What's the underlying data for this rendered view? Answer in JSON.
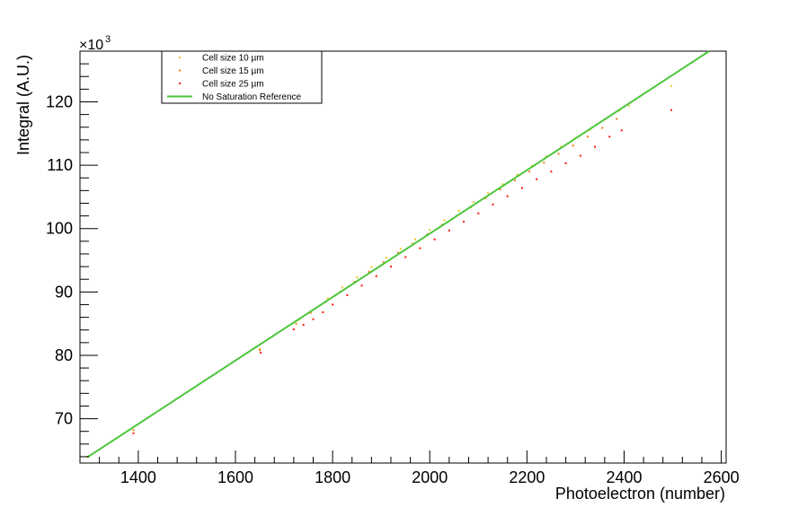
{
  "chart_data": {
    "type": "scatter",
    "xlabel": "Photoelectron (number)",
    "ylabel": "Integral (A.U.)",
    "y_multiplier_label": "×10",
    "y_multiplier_exp": "3",
    "xlim": [
      1280,
      2610
    ],
    "ylim": [
      63,
      128
    ],
    "x_ticks": [
      1400,
      1600,
      1800,
      2000,
      2200,
      2400,
      2600
    ],
    "y_ticks": [
      70,
      80,
      90,
      100,
      110,
      120
    ],
    "x_minor_step": 40,
    "y_minor_step": 2,
    "grid": false,
    "legend_position": "top-left",
    "series": [
      {
        "name": "Cell size 10 µm",
        "color": "#e6c61e",
        "style": "markers",
        "points": [
          [
            1295,
            64.0
          ],
          [
            1650,
            81.0
          ],
          [
            1730,
            85.6
          ],
          [
            1760,
            87.2
          ],
          [
            1790,
            89.0
          ],
          [
            1820,
            90.7
          ],
          [
            1850,
            92.3
          ],
          [
            1880,
            93.9
          ],
          [
            1910,
            95.4
          ],
          [
            1940,
            96.8
          ],
          [
            1970,
            98.3
          ],
          [
            2000,
            99.8
          ],
          [
            2030,
            101.3
          ],
          [
            2060,
            102.8
          ],
          [
            2090,
            104.2
          ],
          [
            2120,
            105.6
          ],
          [
            2150,
            107.0
          ],
          [
            2180,
            108.5
          ],
          [
            2210,
            109.9
          ],
          [
            2240,
            111.4
          ],
          [
            2270,
            112.9
          ],
          [
            2300,
            114.3
          ],
          [
            2330,
            115.6
          ],
          [
            2360,
            117.2
          ],
          [
            2390,
            118.6
          ],
          [
            2410,
            119.4
          ],
          [
            2497,
            122.5
          ]
        ]
      },
      {
        "name": "Cell size 15 µm",
        "color": "#f07a1a",
        "style": "markers",
        "points": [
          [
            1390,
            68.2
          ],
          [
            1650,
            80.8
          ],
          [
            1725,
            85.0
          ],
          [
            1755,
            86.7
          ],
          [
            1785,
            88.4
          ],
          [
            1815,
            90.0
          ],
          [
            1845,
            91.6
          ],
          [
            1875,
            93.2
          ],
          [
            1905,
            94.7
          ],
          [
            1935,
            96.2
          ],
          [
            1965,
            97.6
          ],
          [
            1995,
            99.1
          ],
          [
            2025,
            100.6
          ],
          [
            2055,
            102.0
          ],
          [
            2085,
            103.4
          ],
          [
            2115,
            104.8
          ],
          [
            2145,
            106.2
          ],
          [
            2175,
            107.6
          ],
          [
            2205,
            109.0
          ],
          [
            2235,
            110.4
          ],
          [
            2265,
            111.8
          ],
          [
            2295,
            113.1
          ],
          [
            2325,
            114.5
          ],
          [
            2355,
            115.9
          ],
          [
            2385,
            117.3
          ]
        ]
      },
      {
        "name": "Cell size 25 µm",
        "color": "#ff1a00",
        "style": "markers",
        "points": [
          [
            1390,
            67.7
          ],
          [
            1652,
            80.4
          ],
          [
            1720,
            84.1
          ],
          [
            1740,
            84.8
          ],
          [
            1760,
            85.7
          ],
          [
            1780,
            86.8
          ],
          [
            1800,
            88.0
          ],
          [
            1830,
            89.5
          ],
          [
            1860,
            91.0
          ],
          [
            1890,
            92.5
          ],
          [
            1920,
            94.0
          ],
          [
            1950,
            95.5
          ],
          [
            1980,
            96.9
          ],
          [
            2010,
            98.3
          ],
          [
            2040,
            99.7
          ],
          [
            2070,
            101.1
          ],
          [
            2100,
            102.4
          ],
          [
            2130,
            103.8
          ],
          [
            2160,
            105.1
          ],
          [
            2190,
            106.4
          ],
          [
            2220,
            107.8
          ],
          [
            2250,
            109.0
          ],
          [
            2280,
            110.3
          ],
          [
            2310,
            111.5
          ],
          [
            2340,
            112.9
          ],
          [
            2370,
            114.5
          ],
          [
            2395,
            115.5
          ],
          [
            2497,
            118.7
          ]
        ]
      },
      {
        "name": "No Saturation Reference",
        "color": "#4cc63c",
        "style": "line",
        "points": [
          [
            1295,
            63.9
          ],
          [
            2575,
            128.0
          ]
        ]
      }
    ]
  }
}
